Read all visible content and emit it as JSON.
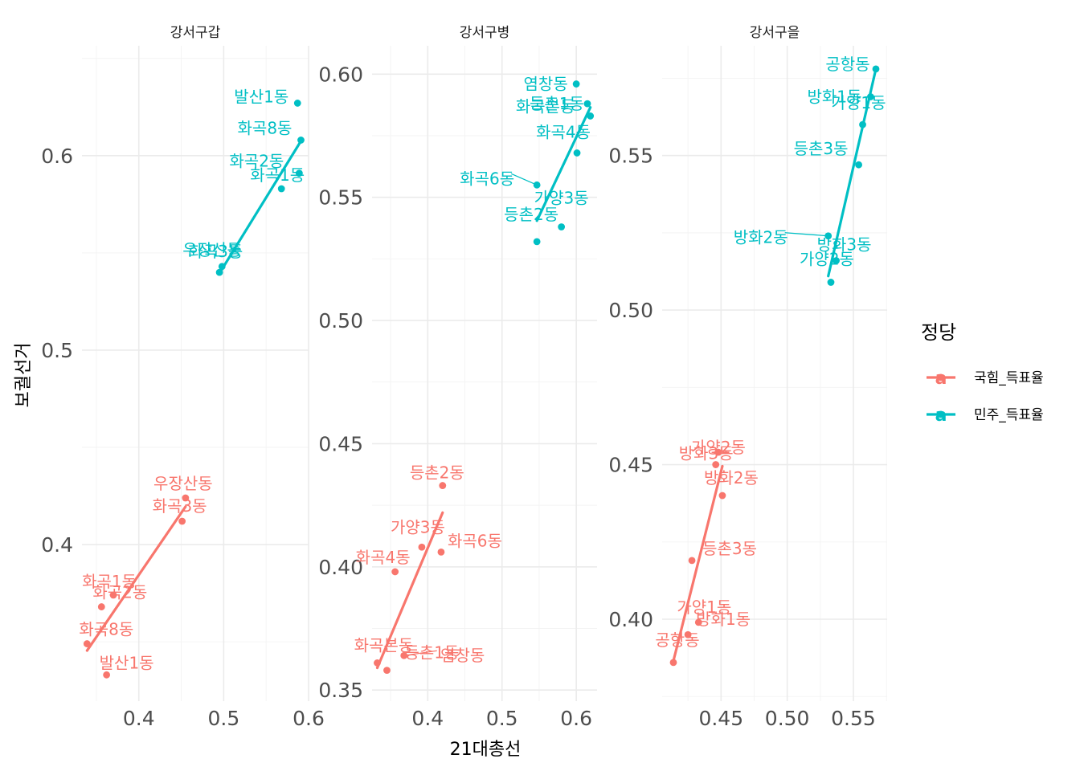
{
  "chart_data": {
    "type": "scatter",
    "xlabel": "21대총선",
    "ylabel": "보궐선거",
    "legend": {
      "title": "정당",
      "position": "right",
      "items": [
        {
          "name": "국힘_득표율",
          "color": "#F8766D",
          "key_glyph": "a"
        },
        {
          "name": "민주_득표율",
          "color": "#00BFC4",
          "key_glyph": "a"
        }
      ]
    },
    "grid": true,
    "regression_lines": true,
    "facets": [
      {
        "title": "강서구갑",
        "xlim": [
          0.333,
          0.6
        ],
        "ylim": [
          0.3195,
          0.6565
        ],
        "x_ticks": [
          0.4,
          0.5,
          0.6
        ],
        "x_tick_labels": [
          "0.4",
          "0.5",
          "0.6"
        ],
        "y_ticks": [
          0.4,
          0.5,
          0.6
        ],
        "y_tick_labels": [
          "0.4",
          "0.5",
          "0.6"
        ],
        "series": [
          {
            "name": "국힘_득표율",
            "points": [
              {
                "label": "우장산동",
                "x": 0.455,
                "y": 0.424
              },
              {
                "label": "화곡3동",
                "x": 0.451,
                "y": 0.412
              },
              {
                "label": "화곡1동",
                "x": 0.37,
                "y": 0.374
              },
              {
                "label": "화곡2동",
                "x": 0.356,
                "y": 0.368
              },
              {
                "label": "화곡8동",
                "x": 0.339,
                "y": 0.349
              },
              {
                "label": "발산1동",
                "x": 0.362,
                "y": 0.333
              }
            ],
            "fit": {
              "x": [
                0.339,
                0.455
              ],
              "y": [
                0.3455,
                0.4195
              ]
            }
          },
          {
            "name": "민주_득표율",
            "points": [
              {
                "label": "발산1동",
                "x": 0.587,
                "y": 0.627
              },
              {
                "label": "화곡8동",
                "x": 0.591,
                "y": 0.608
              },
              {
                "label": "화곡2동",
                "x": 0.589,
                "y": 0.591
              },
              {
                "label": "화곡1동",
                "x": 0.568,
                "y": 0.583
              },
              {
                "label": "화곡3동",
                "x": 0.498,
                "y": 0.543
              },
              {
                "label": "우장산동",
                "x": 0.495,
                "y": 0.54
              }
            ],
            "fit": {
              "x": [
                0.495,
                0.591
              ],
              "y": [
                0.5395,
                0.6075
              ]
            }
          }
        ]
      },
      {
        "title": "강서구병",
        "xlim": [
          0.325,
          0.628
        ],
        "ylim": [
          0.3455,
          0.6115
        ],
        "x_ticks": [
          0.4,
          0.5,
          0.6
        ],
        "x_tick_labels": [
          "0.4",
          "0.5",
          "0.6"
        ],
        "y_ticks": [
          0.35,
          0.4,
          0.45,
          0.5,
          0.55,
          0.6
        ],
        "y_tick_labels": [
          "0.35",
          "0.40",
          "0.45",
          "0.50",
          "0.55",
          "0.60"
        ],
        "series": [
          {
            "name": "국힘_득표율",
            "points": [
              {
                "label": "등촌2동",
                "x": 0.42,
                "y": 0.433
              },
              {
                "label": "가양3동",
                "x": 0.392,
                "y": 0.408
              },
              {
                "label": "화곡6동",
                "x": 0.418,
                "y": 0.406
              },
              {
                "label": "화곡4동",
                "x": 0.356,
                "y": 0.398
              },
              {
                "label": "화곡본동",
                "x": 0.332,
                "y": 0.361
              },
              {
                "label": "염창동",
                "x": 0.368,
                "y": 0.364
              },
              {
                "label": "등촌1동",
                "x": 0.345,
                "y": 0.358
              }
            ],
            "fit": {
              "x": [
                0.332,
                0.42
              ],
              "y": [
                0.359,
                0.422
              ]
            }
          },
          {
            "name": "민주_득표율",
            "points": [
              {
                "label": "염창동",
                "x": 0.6,
                "y": 0.596
              },
              {
                "label": "등촌1동",
                "x": 0.615,
                "y": 0.588
              },
              {
                "label": "화곡본동",
                "x": 0.619,
                "y": 0.583
              },
              {
                "label": "화곡4동",
                "x": 0.601,
                "y": 0.568
              },
              {
                "label": "화곡6동",
                "x": 0.547,
                "y": 0.555
              },
              {
                "label": "가양3동",
                "x": 0.58,
                "y": 0.538
              },
              {
                "label": "등촌2동",
                "x": 0.547,
                "y": 0.532
              }
            ],
            "fit": {
              "x": [
                0.547,
                0.619
              ],
              "y": [
                0.5405,
                0.5865
              ]
            }
          }
        ]
      },
      {
        "title": "강서구을",
        "xlim": [
          0.4055,
          0.5755
        ],
        "ylim": [
          0.3735,
          0.5855
        ],
        "x_ticks": [
          0.45,
          0.5,
          0.55
        ],
        "x_tick_labels": [
          "0.45",
          "0.50",
          "0.55"
        ],
        "y_ticks": [
          0.4,
          0.45,
          0.5,
          0.55
        ],
        "y_tick_labels": [
          "0.40",
          "0.45",
          "0.50",
          "0.55"
        ],
        "series": [
          {
            "name": "국힘_득표율",
            "points": [
              {
                "label": "가양2동",
                "x": 0.448,
                "y": 0.454
              },
              {
                "label": "방화3동",
                "x": 0.446,
                "y": 0.45
              },
              {
                "label": "방화2동",
                "x": 0.451,
                "y": 0.44
              },
              {
                "label": "등촌3동",
                "x": 0.428,
                "y": 0.419
              },
              {
                "label": "가양1동",
                "x": 0.433,
                "y": 0.399
              },
              {
                "label": "방화1동",
                "x": 0.425,
                "y": 0.395
              },
              {
                "label": "공항동",
                "x": 0.414,
                "y": 0.386
              }
            ],
            "fit": {
              "x": [
                0.414,
                0.451
              ],
              "y": [
                0.3865,
                0.4495
              ]
            }
          },
          {
            "name": "민주_득표율",
            "points": [
              {
                "label": "공항동",
                "x": 0.567,
                "y": 0.578
              },
              {
                "label": "방화1동",
                "x": 0.563,
                "y": 0.569
              },
              {
                "label": "가양1동",
                "x": 0.557,
                "y": 0.56
              },
              {
                "label": "등촌3동",
                "x": 0.554,
                "y": 0.547
              },
              {
                "label": "방화2동",
                "x": 0.531,
                "y": 0.524
              },
              {
                "label": "방화3동",
                "x": 0.537,
                "y": 0.516
              },
              {
                "label": "가양2동",
                "x": 0.533,
                "y": 0.509
              }
            ],
            "fit": {
              "x": [
                0.531,
                0.567
              ],
              "y": [
                0.511,
                0.578
              ]
            }
          }
        ]
      }
    ]
  }
}
